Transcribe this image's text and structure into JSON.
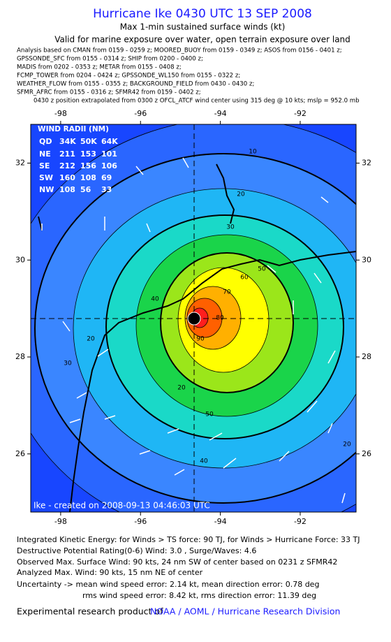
{
  "header": {
    "title": "Hurricane Ike 0430 UTC 13 SEP 2008",
    "subtitle": "Max 1-min sustained surface winds (kt)",
    "valid": "Valid for marine exposure over water, open terrain exposure over land",
    "sources": [
      "Analysis based on  CMAN from 0159 - 0259 z;  MOORED_BUOY from 0159 - 0349 z;  ASOS from 0156 - 0401 z;",
      "GPSSONDE_SFC from 0155 - 0314 z;  SHIP from 0200 - 0400 z;",
      "MADIS from 0202 - 0353 z;  METAR from 0155 - 0408 z;",
      "FCMP_TOWER from 0204 - 0424 z;  GPSSONDE_WL150 from 0155 - 0322 z;",
      "WEATHER_FLOW from 0155 - 0355 z;  BACKGROUND_FIELD from 0430 - 0430 z;",
      "SFMR_AFRC from 0155 - 0316 z;  SFMR42 from 0159 - 0402 z;",
      "0430 z position extrapolated from 0300 z OFCL_ATCF wind center using 315 deg @ 10 kts; mslp = 952.0 mb"
    ]
  },
  "map": {
    "lon_range": [
      -98.75,
      -90.6
    ],
    "lat_range": [
      24.8,
      32.8
    ],
    "lon_ticks": [
      -98,
      -96,
      -94,
      -92
    ],
    "lat_ticks": [
      26,
      28,
      30,
      32
    ],
    "contour_labels": [
      10,
      20,
      30,
      40,
      50,
      60,
      70,
      80,
      90,
      20,
      20,
      30,
      40,
      50,
      20
    ],
    "wind_radii": {
      "title": "WIND RADII (NM)",
      "columns": [
        "QD",
        "34K",
        "50K",
        "64K"
      ],
      "rows": [
        [
          "NE",
          211,
          153,
          101
        ],
        [
          "SE",
          212,
          156,
          106
        ],
        [
          "SW",
          160,
          108,
          69
        ],
        [
          "NW",
          108,
          56,
          33
        ]
      ]
    },
    "credit": "Ike - created on 2008-09-13 04:46:03 UTC"
  },
  "footer": {
    "lines": [
      "Integrated Kinetic Energy:  for Winds > TS force: 90 TJ,  for Winds > Hurricane Force: 33 TJ",
      "Destructive Potential Rating(0-6)   Wind: 3.0 , Surge/Waves: 4.6",
      "Observed Max. Surface Wind: 90 kts, 24 nm SW of center based on 0231 z SFMR42",
      "Analyzed Max. Wind: 90 kts, 15 nm NE of center",
      "Uncertainty -> mean wind speed error: 2.14 kt,  mean direction error: 0.78 deg",
      "rms wind speed error: 8.42 kt,  rms direction error: 11.39 deg"
    ],
    "product": "Experimental research product of",
    "link": "NOAA / AOML / Hurricane Research Division"
  }
}
